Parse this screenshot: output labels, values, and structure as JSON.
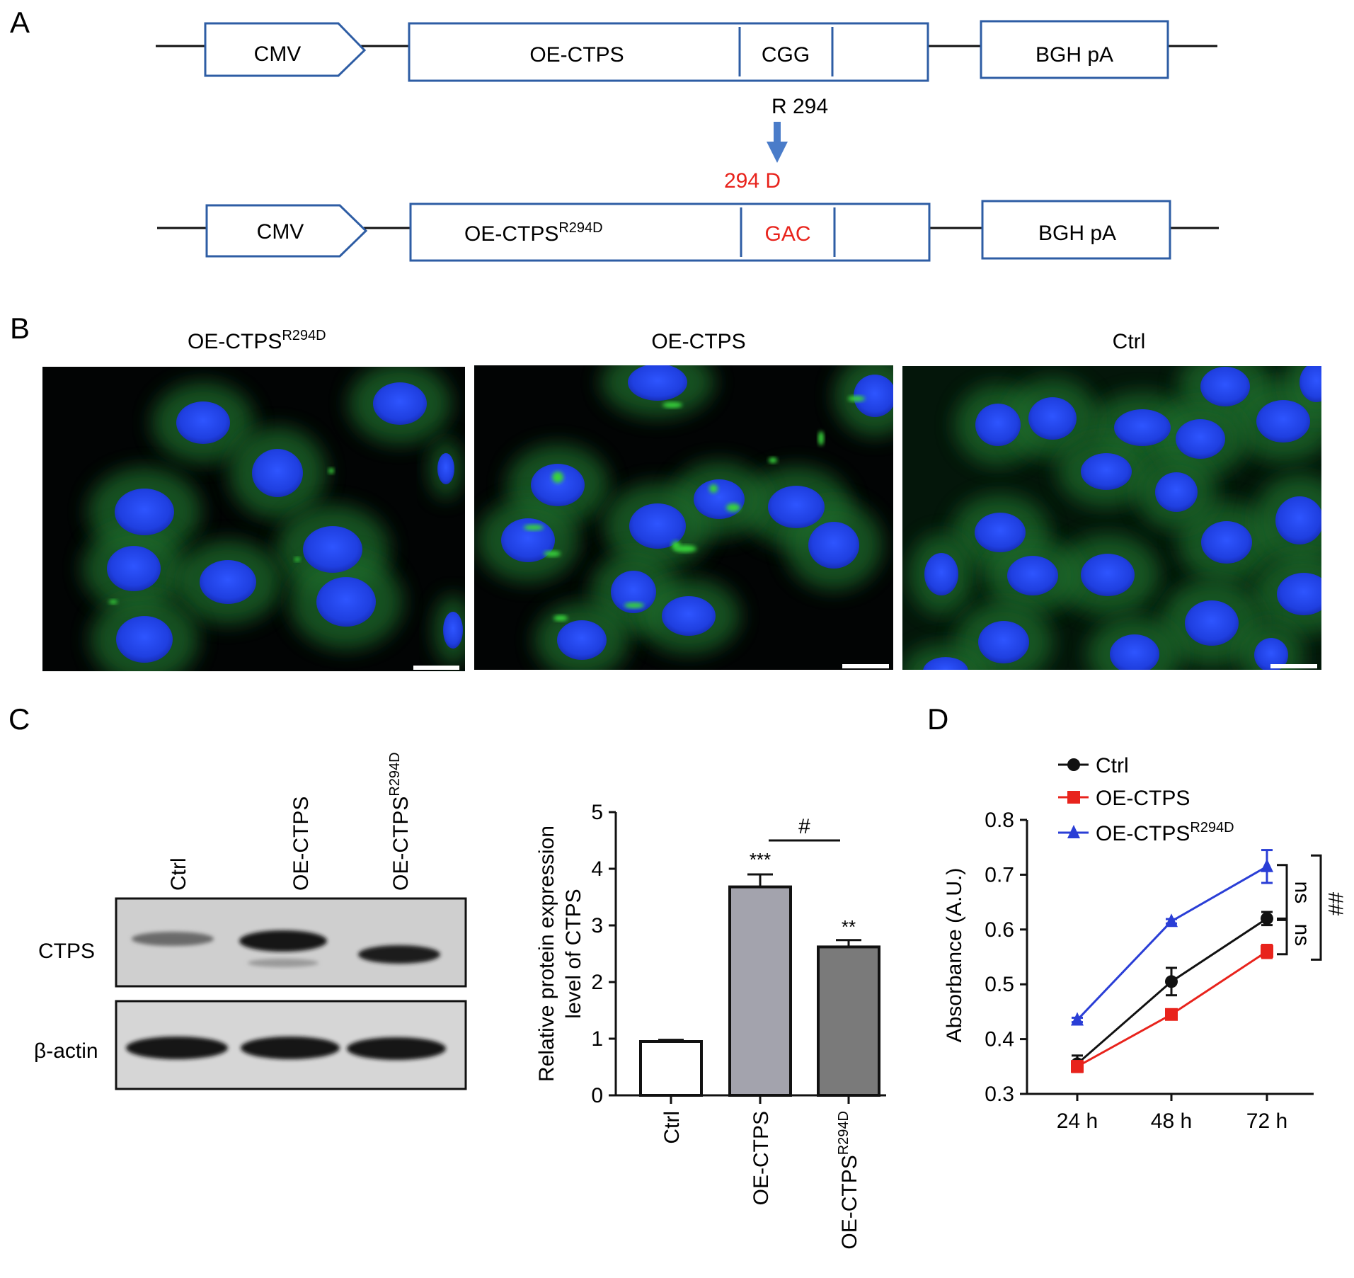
{
  "panels": {
    "a": {
      "letter": "A",
      "top": {
        "promoter": "CMV",
        "gene": "OE-CTPS",
        "codon": "CGG",
        "polya": "BGH pA"
      },
      "mutation": {
        "from": "R 294",
        "to": "294 D"
      },
      "bottom": {
        "promoter": "CMV",
        "gene": "OE-CTPS",
        "gene_sup": "R294D",
        "codon": "GAC",
        "polya": "BGH pA"
      },
      "colors": {
        "box_border": "#2e5da4",
        "arrow": "#4a7cc9",
        "mutation_text": "#e8231c"
      }
    },
    "b": {
      "letter": "B",
      "images": [
        {
          "label": "OE-CTPS",
          "label_sup": "R294D"
        },
        {
          "label": "OE-CTPS",
          "label_sup": ""
        },
        {
          "label": "Ctrl",
          "label_sup": ""
        }
      ],
      "colors": {
        "background": "#020404",
        "nucleus": "#1f3fe0",
        "cytoplasm": "#1a6a2a",
        "puncta": "#37d23a"
      }
    },
    "c": {
      "letter": "C",
      "blot": {
        "lanes": [
          {
            "label": "Ctrl",
            "sup": ""
          },
          {
            "label": "OE-CTPS",
            "sup": ""
          },
          {
            "label": "OE-CTPS",
            "sup": "R294D"
          }
        ],
        "rows": [
          "CTPS",
          "β-actin"
        ]
      },
      "significance": {
        "hash": "#",
        "stars_oe": "***",
        "stars_mut": "**"
      },
      "colors": [
        "#ffffff",
        "#a3a3ad",
        "#7a7a7a"
      ]
    },
    "d": {
      "letter": "D",
      "significance": {
        "ns_upper": "ns",
        "ns_lower": "ns",
        "hash": "##"
      },
      "colors": {
        "Ctrl": "#111111",
        "OE-CTPS": "#e8231c",
        "OE-CTPS R294D": "#2a3ed6"
      }
    }
  },
  "chart_data": [
    {
      "type": "bar",
      "panel": "C",
      "categories": [
        "Ctrl",
        "OE-CTPS",
        "OE-CTPSR294D"
      ],
      "values": [
        0.95,
        3.68,
        2.62
      ],
      "errors": [
        0.03,
        0.22,
        0.12
      ],
      "ylabel": "Relative protein expression level of CTPS",
      "ylabel_lines": [
        "Relative protein expression",
        "level of CTPS"
      ],
      "ylim": [
        0,
        5
      ],
      "yticks": [
        0,
        1,
        2,
        3,
        4,
        5
      ],
      "xtick_labels": [
        "Ctrl",
        "OE-CTPS",
        "OE-CTPS"
      ],
      "xtick_sups": [
        "",
        "",
        "R294D"
      ]
    },
    {
      "type": "line",
      "panel": "D",
      "x": [
        "24 h",
        "48 h",
        "72 h"
      ],
      "series": [
        {
          "name": "Ctrl",
          "values": [
            0.355,
            0.505,
            0.62
          ],
          "errors": [
            0.015,
            0.025,
            0.012
          ],
          "marker": "circle"
        },
        {
          "name": "OE-CTPS",
          "name_sup": "",
          "values": [
            0.35,
            0.445,
            0.56
          ],
          "errors": [
            0.01,
            0.008,
            0.012
          ],
          "marker": "square"
        },
        {
          "name": "OE-CTPS",
          "name_sup": "R294D",
          "values": [
            0.435,
            0.615,
            0.715
          ],
          "errors": [
            0.004,
            0.004,
            0.03
          ],
          "marker": "triangle"
        }
      ],
      "ylabel": "Absorbance (A.U.)",
      "ylim": [
        0.3,
        0.8
      ],
      "yticks": [
        0.3,
        0.4,
        0.5,
        0.6,
        0.7,
        0.8
      ],
      "ytick_labels": [
        "0.3",
        "0.4",
        "0.5",
        "0.6",
        "0.7",
        "0.8"
      ],
      "legend": "top-left"
    }
  ]
}
